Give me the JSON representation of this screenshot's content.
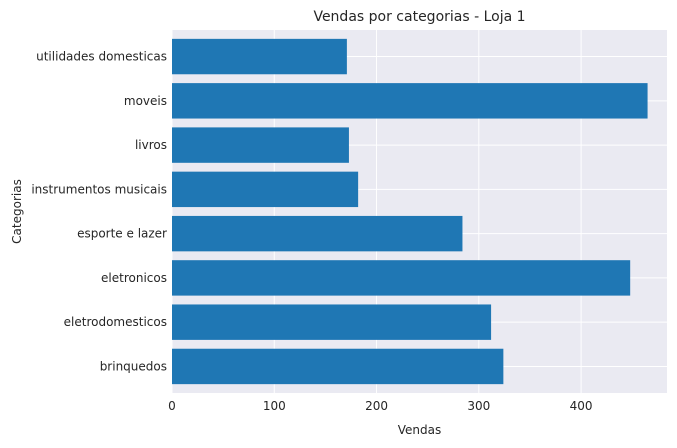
{
  "chart_data": {
    "type": "bar",
    "orientation": "horizontal",
    "title": "Vendas por categorias - Loja 1",
    "xlabel": "Vendas",
    "ylabel": "Categorias",
    "categories": [
      "brinquedos",
      "eletrodomesticos",
      "eletronicos",
      "esporte e lazer",
      "instrumentos musicais",
      "livros",
      "moveis",
      "utilidades domesticas"
    ],
    "values": [
      324,
      312,
      448,
      284,
      182,
      173,
      465,
      171
    ],
    "xlim": [
      0,
      484
    ],
    "xticks": [
      0,
      100,
      200,
      300,
      400
    ],
    "grid": true,
    "bar_color": "#1f77b4",
    "background_color": "#eaeaf2",
    "grid_color": "#ffffff"
  }
}
